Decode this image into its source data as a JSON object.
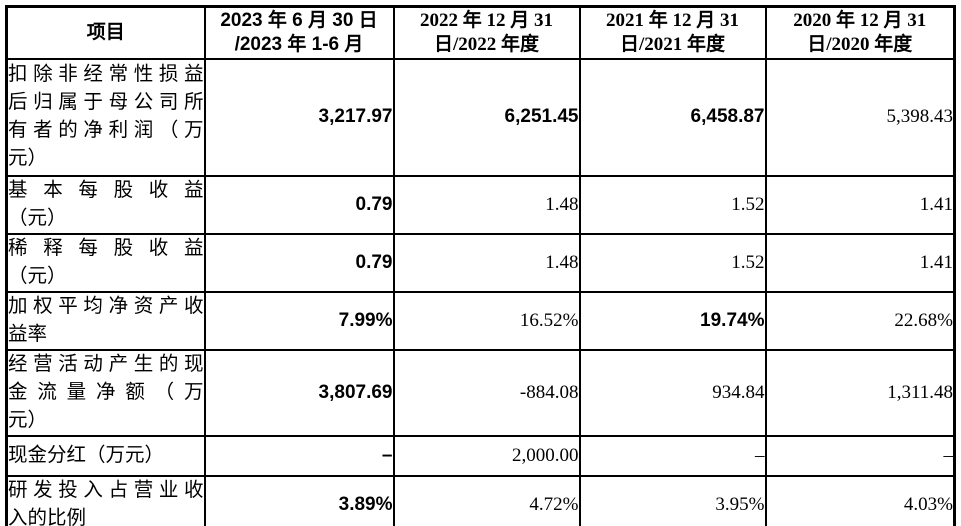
{
  "table": {
    "header": {
      "item": "项目",
      "periods": [
        {
          "lines": [
            "2023 年 6 月 30 日",
            "/2023 年 1-6 月"
          ]
        },
        {
          "lines": [
            "2022 年 12 月 31",
            "日/2022 年度"
          ]
        },
        {
          "lines": [
            "2021 年 12 月 31",
            "日/2021 年度"
          ]
        },
        {
          "lines": [
            "2020 年 12 月 31",
            "日/2020 年度"
          ]
        }
      ]
    },
    "rows": [
      {
        "label_lines": [
          "扣除非经常性损益",
          "后归属于母公司所",
          "有者的净利润（万",
          "元）"
        ],
        "values": [
          "3,217.97",
          "6,251.45",
          "6,458.87",
          "5,398.43"
        ]
      },
      {
        "label_lines": [
          "基本每股收益",
          "（元）"
        ],
        "values": [
          "0.79",
          "1.48",
          "1.52",
          "1.41"
        ]
      },
      {
        "label_lines": [
          "稀释每股收益",
          "（元）"
        ],
        "values": [
          "0.79",
          "1.48",
          "1.52",
          "1.41"
        ]
      },
      {
        "label_lines": [
          "加权平均净资产收",
          "益率"
        ],
        "values": [
          "7.99%",
          "16.52%",
          "19.74%",
          "22.68%"
        ]
      },
      {
        "label_lines": [
          "经营活动产生的现",
          "金流量净额（万",
          "元）"
        ],
        "values": [
          "3,807.69",
          "-884.08",
          "934.84",
          "1,311.48"
        ]
      },
      {
        "label_lines": [
          "现金分红（万元）"
        ],
        "values": [
          "–",
          "2,000.00",
          "–",
          "–"
        ]
      },
      {
        "label_lines": [
          "研发投入占营业收",
          "入的比例"
        ],
        "values": [
          "3.89%",
          "4.72%",
          "3.95%",
          "4.03%"
        ]
      }
    ],
    "colors": {
      "text": "#000000",
      "border": "#000000",
      "background": "#ffffff"
    }
  }
}
